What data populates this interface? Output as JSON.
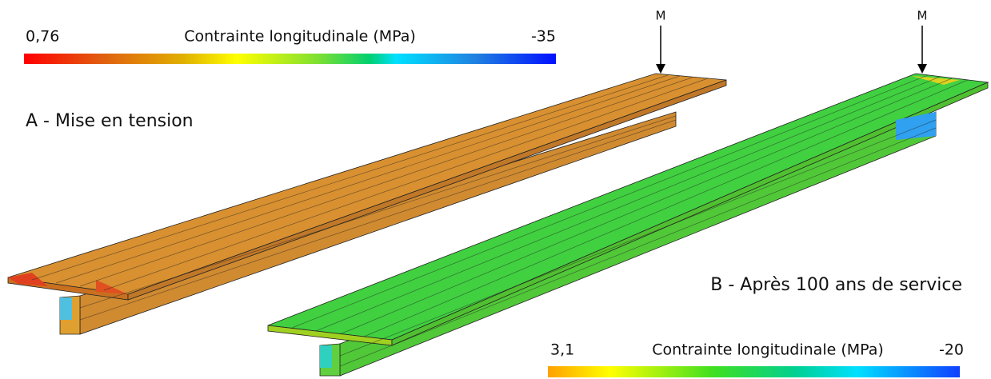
{
  "scale_a": {
    "min": "0,76",
    "title": "Contrainte longitudinale (MPa)",
    "max": "-35"
  },
  "label_a": "A - Mise en tension",
  "marker_a": "M",
  "label_b": "B - Après 100 ans de service",
  "marker_b": "M",
  "scale_b": {
    "min": "3,1",
    "title": "Contrainte longitudinale (MPa)",
    "max": "-20"
  }
}
